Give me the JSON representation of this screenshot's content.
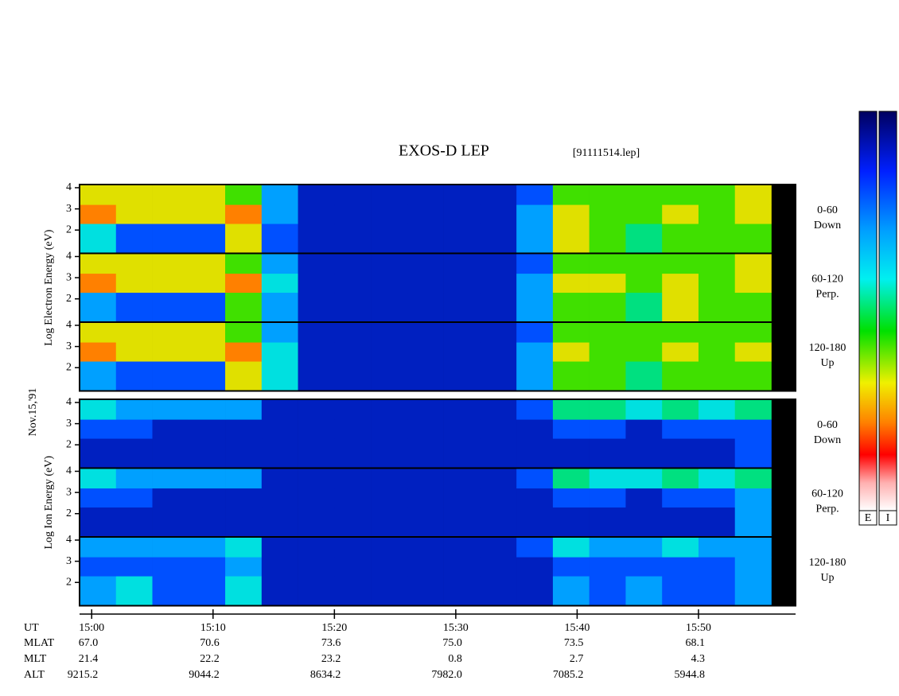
{
  "chart_data": {
    "type": "spectrogram",
    "title": "EXOS-D LEP",
    "subtitle": "[91111514.lep]",
    "date_label": "Nov.15,'91",
    "x_label": "UT",
    "xlim": [
      -1,
      58
    ],
    "xticks": [
      {
        "value": 0,
        "label": "15:00"
      },
      {
        "value": 10,
        "label": "15:10"
      },
      {
        "value": 20,
        "label": "15:20"
      },
      {
        "value": 30,
        "label": "15:30"
      },
      {
        "value": 40,
        "label": "15:40"
      },
      {
        "value": 50,
        "label": "15:50"
      }
    ],
    "xbins": [
      -1,
      2,
      5,
      8,
      11,
      14,
      17,
      20,
      23,
      26,
      29,
      32,
      35,
      38,
      41,
      44,
      47,
      50,
      53,
      56
    ],
    "ylim": [
      0.9,
      4.15
    ],
    "yticks": [
      2,
      3,
      4
    ],
    "ybins": [
      0.9,
      2.3,
      3.2,
      4.15
    ],
    "colors": [
      "#000080",
      "#0020c0",
      "#0050ff",
      "#00a0ff",
      "#00e0e0",
      "#00e080",
      "#40e000",
      "#e0e000",
      "#ff8000",
      "#ff0000"
    ],
    "colorbar_labels": [
      "E",
      "I"
    ],
    "groups": [
      {
        "ylabel": "Log Electron Energy (eV)",
        "panels": [
          {
            "label": [
              "0-60",
              "Down"
            ],
            "z": [
              [
                4,
                2,
                2,
                2,
                7,
                2,
                1,
                1,
                1,
                1,
                1,
                1,
                3,
                7,
                6,
                5,
                6,
                6,
                6
              ],
              [
                8,
                7,
                7,
                7,
                8,
                3,
                1,
                1,
                1,
                1,
                1,
                1,
                3,
                7,
                6,
                6,
                7,
                6,
                7
              ],
              [
                7,
                7,
                7,
                7,
                6,
                3,
                1,
                1,
                1,
                1,
                1,
                1,
                2,
                6,
                6,
                6,
                6,
                6,
                7
              ]
            ]
          },
          {
            "label": [
              "60-120",
              "Perp."
            ],
            "z": [
              [
                3,
                2,
                2,
                2,
                6,
                3,
                1,
                1,
                1,
                1,
                1,
                1,
                3,
                6,
                6,
                5,
                7,
                6,
                6
              ],
              [
                8,
                7,
                7,
                7,
                8,
                4,
                1,
                1,
                1,
                1,
                1,
                1,
                3,
                7,
                7,
                6,
                7,
                6,
                7
              ],
              [
                7,
                7,
                7,
                7,
                6,
                3,
                1,
                1,
                1,
                1,
                1,
                1,
                2,
                6,
                6,
                6,
                6,
                6,
                7
              ]
            ]
          },
          {
            "label": [
              "120-180",
              "Up"
            ],
            "z": [
              [
                3,
                2,
                2,
                2,
                7,
                4,
                1,
                1,
                1,
                1,
                1,
                1,
                3,
                6,
                6,
                5,
                6,
                6,
                6
              ],
              [
                8,
                7,
                7,
                7,
                8,
                4,
                1,
                1,
                1,
                1,
                1,
                1,
                3,
                7,
                6,
                6,
                7,
                6,
                7
              ],
              [
                7,
                7,
                7,
                7,
                6,
                3,
                1,
                1,
                1,
                1,
                1,
                1,
                2,
                6,
                6,
                6,
                6,
                6,
                6
              ]
            ]
          }
        ]
      },
      {
        "ylabel": "Log Ion Energy (eV)",
        "panels": [
          {
            "label": [
              "0-60",
              "Down"
            ],
            "z": [
              [
                1,
                1,
                1,
                1,
                1,
                1,
                1,
                1,
                1,
                1,
                1,
                1,
                1,
                1,
                1,
                1,
                1,
                1,
                2
              ],
              [
                2,
                2,
                1,
                1,
                1,
                1,
                1,
                1,
                1,
                1,
                1,
                1,
                1,
                2,
                2,
                1,
                2,
                2,
                2
              ],
              [
                4,
                3,
                3,
                3,
                3,
                1,
                1,
                1,
                1,
                1,
                1,
                1,
                2,
                5,
                5,
                4,
                5,
                4,
                5
              ]
            ]
          },
          {
            "label": [
              "60-120",
              "Perp."
            ],
            "z": [
              [
                1,
                1,
                1,
                1,
                1,
                1,
                1,
                1,
                1,
                1,
                1,
                1,
                1,
                1,
                1,
                1,
                1,
                1,
                3
              ],
              [
                2,
                2,
                1,
                1,
                1,
                1,
                1,
                1,
                1,
                1,
                1,
                1,
                1,
                2,
                2,
                1,
                2,
                2,
                3
              ],
              [
                4,
                3,
                3,
                3,
                3,
                1,
                1,
                1,
                1,
                1,
                1,
                1,
                2,
                5,
                4,
                4,
                5,
                4,
                5
              ]
            ]
          },
          {
            "label": [
              "120-180",
              "Up"
            ],
            "z": [
              [
                3,
                4,
                2,
                2,
                4,
                1,
                1,
                1,
                1,
                1,
                1,
                1,
                1,
                3,
                2,
                3,
                2,
                2,
                3
              ],
              [
                2,
                2,
                2,
                2,
                3,
                1,
                1,
                1,
                1,
                1,
                1,
                1,
                1,
                2,
                2,
                2,
                2,
                2,
                3
              ],
              [
                3,
                3,
                3,
                3,
                4,
                1,
                1,
                1,
                1,
                1,
                1,
                1,
                2,
                4,
                3,
                3,
                4,
                3,
                3
              ]
            ]
          }
        ]
      }
    ],
    "orbit": [
      {
        "label": "MLAT",
        "values": [
          "67.0",
          "70.6",
          "73.6",
          "75.0",
          "73.5",
          "68.1"
        ]
      },
      {
        "label": "MLT",
        "values": [
          "21.4",
          "22.2",
          "23.2",
          "0.8",
          "2.7",
          "4.3"
        ]
      },
      {
        "label": "ALT",
        "values": [
          "9215.2",
          "9044.2",
          "8634.2",
          "7982.0",
          "7085.2",
          "5944.8"
        ]
      }
    ]
  }
}
